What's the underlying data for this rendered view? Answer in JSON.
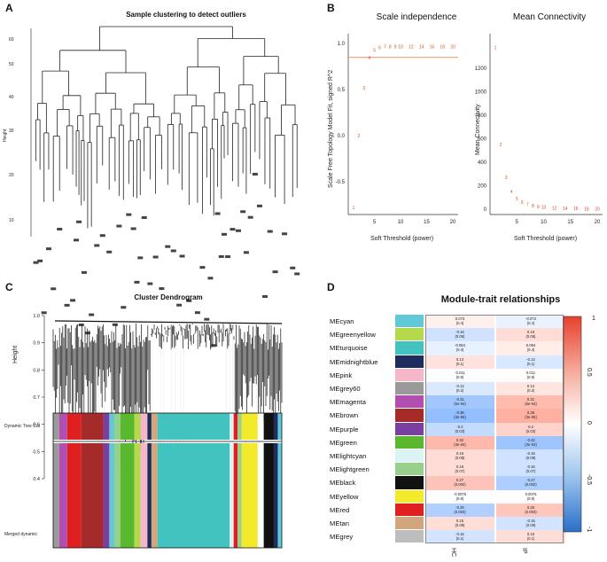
{
  "panels": {
    "A": {
      "letter": "A",
      "title": "Sample clustering to detect outliers",
      "ylabel": "Height",
      "yticks": [
        "60",
        "50",
        "40",
        "30",
        "20",
        "10"
      ]
    },
    "B": {
      "letter": "B",
      "left": {
        "title": "Scale independence",
        "xlabel": "Soft Threshold (power)",
        "ylabel": "Scale Free Topology Model Fit, signed R^2",
        "xticks": [
          "5",
          "10",
          "15",
          "20"
        ],
        "yticks": [
          "1.0",
          "0.5",
          "0.0",
          "-0.5"
        ],
        "point_labels": [
          "1",
          "2",
          "3",
          "4",
          "5",
          "6",
          "7",
          "8",
          "9",
          "10",
          "12",
          "14",
          "16",
          "18",
          "20"
        ],
        "threshold": 0.85
      },
      "right": {
        "title": "Mean Connectivity",
        "xlabel": "Soft Threshold (power)",
        "ylabel": "Mean Connectivity",
        "xticks": [
          "5",
          "10",
          "15",
          "20"
        ],
        "yticks": [
          "0",
          "200",
          "400",
          "600",
          "800",
          "1000",
          "1200"
        ],
        "point_labels": [
          "1",
          "2",
          "3",
          "4",
          "5",
          "6",
          "7",
          "8",
          "9",
          "10",
          "12",
          "14",
          "16",
          "18",
          "20"
        ]
      }
    },
    "C": {
      "letter": "C",
      "title": "Cluster Dendrogram",
      "ylabel": "Height",
      "yticks": [
        "1.0",
        "0.9",
        "0.8",
        "0.7",
        "0.6",
        "0.5",
        "0.4"
      ],
      "row1_label": "Dynamic Tree Cut",
      "row2_label": "Merged dynamic"
    },
    "D": {
      "letter": "D",
      "title": "Module-trait relationships",
      "columns": [
        "HC",
        "IP"
      ],
      "colorbar_ticks": [
        "1",
        "0.5",
        "0",
        "-0.5",
        "-1"
      ]
    }
  },
  "chart_data": [
    {
      "type": "scatter",
      "title": "Scale independence",
      "xlabel": "Soft Threshold (power)",
      "ylabel": "Scale Free Topology Model Fit, signed R^2",
      "x": [
        1,
        2,
        3,
        4,
        5,
        6,
        7,
        8,
        9,
        10,
        12,
        14,
        16,
        18,
        20
      ],
      "y": [
        -0.78,
        0.0,
        0.52,
        0.85,
        0.93,
        0.96,
        0.97,
        0.97,
        0.97,
        0.97,
        0.97,
        0.97,
        0.97,
        0.97,
        0.97
      ],
      "xlim": [
        0,
        21
      ],
      "ylim": [
        -0.8,
        1.05
      ],
      "hline": 0.85
    },
    {
      "type": "scatter",
      "title": "Mean Connectivity",
      "xlabel": "Soft Threshold (power)",
      "ylabel": "Mean Connectivity",
      "x": [
        1,
        2,
        3,
        4,
        5,
        6,
        7,
        8,
        9,
        10,
        12,
        14,
        16,
        18,
        20
      ],
      "y": [
        1380,
        550,
        270,
        150,
        90,
        60,
        40,
        30,
        22,
        17,
        12,
        8,
        6,
        4,
        3
      ],
      "xlim": [
        0,
        21
      ],
      "ylim": [
        0,
        1450
      ]
    },
    {
      "type": "heatmap",
      "title": "Module-trait relationships",
      "columns": [
        "HC",
        "IP"
      ],
      "rows": [
        {
          "module": "MEcyan",
          "color": "#5fc9d8",
          "hc": "0.073\n(0.4)",
          "ip": "-0.073\n(0.4)",
          "v": [
            0.07,
            -0.07
          ]
        },
        {
          "module": "MEgreenyellow",
          "color": "#b5d94a",
          "hc": "-0.16\n(0.06)",
          "ip": "0.16\n(0.06)",
          "v": [
            -0.16,
            0.16
          ]
        },
        {
          "module": "MEturquoise",
          "color": "#43c3c0",
          "hc": "-0.084\n(0.4)",
          "ip": "0.084\n(0.4)",
          "v": [
            -0.08,
            0.08
          ]
        },
        {
          "module": "MEmidnightblue",
          "color": "#1c2d5e",
          "hc": "0.13\n(0.1)",
          "ip": "-0.13\n(0.1)",
          "v": [
            0.13,
            -0.13
          ]
        },
        {
          "module": "MEpink",
          "color": "#f5b8c9",
          "hc": "-0.011\n(0.9)",
          "ip": "0.011\n(0.9)",
          "v": [
            -0.01,
            0.01
          ]
        },
        {
          "module": "MEgrey60",
          "color": "#9a9a9a",
          "hc": "-0.12\n(0.2)",
          "ip": "0.12\n(0.2)",
          "v": [
            -0.12,
            0.12
          ]
        },
        {
          "module": "MEmagenta",
          "color": "#b04fb0",
          "hc": "-0.31\n(5e-04)",
          "ip": "0.31\n(5e-04)",
          "v": [
            -0.31,
            0.31
          ]
        },
        {
          "module": "MEbrown",
          "color": "#a52a2a",
          "hc": "-0.36\n(3e-05)",
          "ip": "0.36\n(3e-05)",
          "v": [
            -0.36,
            0.36
          ]
        },
        {
          "module": "MEpurple",
          "color": "#7a3fa0",
          "hc": "-0.2\n(0.03)",
          "ip": "0.2\n(0.03)",
          "v": [
            -0.2,
            0.2
          ]
        },
        {
          "module": "MEgreen",
          "color": "#5ab82e",
          "hc": "0.32\n(3e-04)",
          "ip": "-0.32\n(3e-04)",
          "v": [
            0.32,
            -0.32
          ]
        },
        {
          "module": "MElightcyan",
          "color": "#dcf3f3",
          "hc": "0.16\n(0.08)",
          "ip": "-0.16\n(0.08)",
          "v": [
            0.16,
            -0.16
          ]
        },
        {
          "module": "MElightgreen",
          "color": "#96d08a",
          "hc": "0.16\n(0.07)",
          "ip": "-0.16\n(0.07)",
          "v": [
            0.16,
            -0.16
          ]
        },
        {
          "module": "MEblack",
          "color": "#111111",
          "hc": "0.27\n(0.002)",
          "ip": "-0.27\n(0.002)",
          "v": [
            0.27,
            -0.27
          ]
        },
        {
          "module": "MEyellow",
          "color": "#f2ea2a",
          "hc": "-0.0075\n(0.9)",
          "ip": "0.0075\n(0.9)",
          "v": [
            -0.01,
            0.01
          ]
        },
        {
          "module": "MEred",
          "color": "#e02020",
          "hc": "-0.26\n(0.003)",
          "ip": "0.26\n(0.003)",
          "v": [
            -0.26,
            0.26
          ]
        },
        {
          "module": "MEtan",
          "color": "#d2a67a",
          "hc": "0.15\n(0.09)",
          "ip": "-0.15\n(0.09)",
          "v": [
            0.15,
            -0.15
          ]
        },
        {
          "module": "MEgrey",
          "color": "#bdbdbd",
          "hc": "-0.15\n(0.1)",
          "ip": "0.15\n(0.1)",
          "v": [
            -0.15,
            0.15
          ]
        }
      ]
    }
  ]
}
